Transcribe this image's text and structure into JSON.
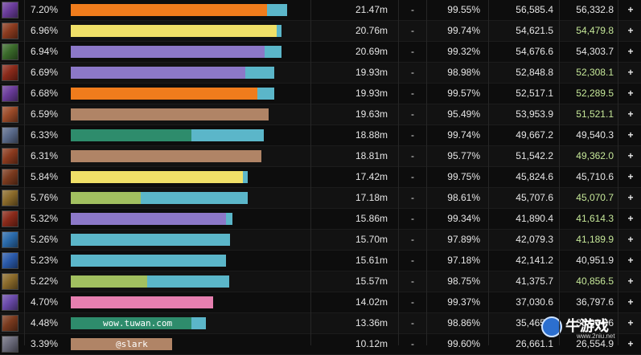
{
  "colors": {
    "accent_green": "#c6e899",
    "bar_ext": "#5bb6c9",
    "text": "#e6e6e6"
  },
  "rows": [
    {
      "icon": "rogue-spec-icon",
      "icon_color": "#6a3c9a",
      "pct": "7.20%",
      "bar_color": "#f07c1c",
      "bar_fraction": 0.872,
      "ext_fraction": 0.088,
      "bar_label": "",
      "damage": "21.47m",
      "dash": "-",
      "accuracy": "99.55%",
      "dps": "56,585.4",
      "dps_effective": "56,332.8",
      "highlight": false
    },
    {
      "icon": "warrior-spec-icon",
      "icon_color": "#8a3a1e",
      "pct": "6.96%",
      "bar_color": "#f0e068",
      "bar_fraction": 0.916,
      "ext_fraction": 0.023,
      "bar_label": "",
      "damage": "20.76m",
      "dash": "-",
      "accuracy": "99.74%",
      "dps": "54,621.5",
      "dps_effective": "54,479.8",
      "highlight": true
    },
    {
      "icon": "shaman-spec-icon",
      "icon_color": "#3a6a2a",
      "pct": "6.94%",
      "bar_color": "#8c78c8",
      "bar_fraction": 0.861,
      "ext_fraction": 0.074,
      "bar_label": "",
      "damage": "20.69m",
      "dash": "-",
      "accuracy": "99.32%",
      "dps": "54,676.6",
      "dps_effective": "54,303.7",
      "highlight": false
    },
    {
      "icon": "warrior-spec-icon",
      "icon_color": "#8a2a1a",
      "pct": "6.69%",
      "bar_color": "#8c78c8",
      "bar_fraction": 0.776,
      "ext_fraction": 0.129,
      "bar_label": "",
      "damage": "19.93m",
      "dash": "-",
      "accuracy": "98.98%",
      "dps": "52,848.8",
      "dps_effective": "52,308.1",
      "highlight": true
    },
    {
      "icon": "rogue-spec-icon",
      "icon_color": "#6a3c9a",
      "pct": "6.68%",
      "bar_color": "#f07c1c",
      "bar_fraction": 0.829,
      "ext_fraction": 0.076,
      "bar_label": "",
      "damage": "19.93m",
      "dash": "-",
      "accuracy": "99.57%",
      "dps": "52,517.1",
      "dps_effective": "52,289.5",
      "highlight": true
    },
    {
      "icon": "warrior-spec-icon",
      "icon_color": "#9a4a28",
      "pct": "6.59%",
      "bar_color": "#b08466",
      "bar_fraction": 0.88,
      "ext_fraction": 0.0,
      "bar_label": "",
      "damage": "19.63m",
      "dash": "-",
      "accuracy": "95.49%",
      "dps": "53,953.9",
      "dps_effective": "51,521.1",
      "highlight": true
    },
    {
      "icon": "druid-spec-icon",
      "icon_color": "#5a6a8a",
      "pct": "6.33%",
      "bar_color": "#2e8c6c",
      "bar_fraction": 0.536,
      "ext_fraction": 0.321,
      "bar_label": "",
      "damage": "18.88m",
      "dash": "-",
      "accuracy": "99.74%",
      "dps": "49,667.2",
      "dps_effective": "49,540.3",
      "highlight": false
    },
    {
      "icon": "warrior-spec-icon",
      "icon_color": "#8a3a1e",
      "pct": "6.31%",
      "bar_color": "#b08466",
      "bar_fraction": 0.846,
      "ext_fraction": 0.0,
      "bar_label": "",
      "damage": "18.81m",
      "dash": "-",
      "accuracy": "95.77%",
      "dps": "51,542.2",
      "dps_effective": "49,362.0",
      "highlight": true
    },
    {
      "icon": "warrior-spec-icon",
      "icon_color": "#7a3a1e",
      "pct": "5.84%",
      "bar_color": "#f0e068",
      "bar_fraction": 0.765,
      "ext_fraction": 0.021,
      "bar_label": "",
      "damage": "17.42m",
      "dash": "-",
      "accuracy": "99.75%",
      "dps": "45,824.6",
      "dps_effective": "45,710.6",
      "highlight": false
    },
    {
      "icon": "hunter-spec-icon",
      "icon_color": "#8a6a2a",
      "pct": "5.76%",
      "bar_color": "#a2c060",
      "bar_fraction": 0.311,
      "ext_fraction": 0.474,
      "bar_label": "",
      "damage": "17.18m",
      "dash": "-",
      "accuracy": "98.61%",
      "dps": "45,707.6",
      "dps_effective": "45,070.7",
      "highlight": true
    },
    {
      "icon": "warrior-spec-icon",
      "icon_color": "#8a2a1a",
      "pct": "5.32%",
      "bar_color": "#8c78c8",
      "bar_fraction": 0.69,
      "ext_fraction": 0.029,
      "bar_label": "",
      "damage": "15.86m",
      "dash": "-",
      "accuracy": "99.34%",
      "dps": "41,890.4",
      "dps_effective": "41,614.3",
      "highlight": true
    },
    {
      "icon": "mage-spec-icon",
      "icon_color": "#2a6aaa",
      "pct": "5.26%",
      "bar_color": "#5bb6c9",
      "bar_fraction": 0.706,
      "ext_fraction": 0.0,
      "bar_label": "",
      "damage": "15.70m",
      "dash": "-",
      "accuracy": "97.89%",
      "dps": "42,079.3",
      "dps_effective": "41,189.9",
      "highlight": true
    },
    {
      "icon": "mage-spec-icon",
      "icon_color": "#2a5aaa",
      "pct": "5.23%",
      "bar_color": "#5bb6c9",
      "bar_fraction": 0.689,
      "ext_fraction": 0.0,
      "bar_label": "",
      "damage": "15.61m",
      "dash": "-",
      "accuracy": "97.18%",
      "dps": "42,141.2",
      "dps_effective": "40,951.9",
      "highlight": false
    },
    {
      "icon": "hunter-spec-icon",
      "icon_color": "#8a6a2a",
      "pct": "5.22%",
      "bar_color": "#a2c060",
      "bar_fraction": 0.34,
      "ext_fraction": 0.366,
      "bar_label": "",
      "damage": "15.57m",
      "dash": "-",
      "accuracy": "98.75%",
      "dps": "41,375.7",
      "dps_effective": "40,856.5",
      "highlight": true
    },
    {
      "icon": "priest-spec-icon",
      "icon_color": "#6a4aaa",
      "pct": "4.70%",
      "bar_color": "#e67fb0",
      "bar_fraction": 0.632,
      "ext_fraction": 0.0,
      "bar_label": "",
      "damage": "14.02m",
      "dash": "-",
      "accuracy": "99.37%",
      "dps": "37,030.6",
      "dps_effective": "36,797.6",
      "highlight": false
    },
    {
      "icon": "warrior-spec-icon",
      "icon_color": "#7a3a1e",
      "pct": "4.48%",
      "bar_color": "#2e8c6c",
      "bar_fraction": 0.536,
      "ext_fraction": 0.064,
      "bar_label": "wow.tuwan.com",
      "damage": "13.36m",
      "dash": "-",
      "accuracy": "98.86%",
      "dps": "35,465.6",
      "dps_effective": "35,064.6",
      "highlight": false
    },
    {
      "icon": "paladin-spec-icon",
      "icon_color": "#6a6a7a",
      "pct": "3.39%",
      "bar_color": "#b08466",
      "bar_fraction": 0.45,
      "ext_fraction": 0.0,
      "bar_label": "@slark",
      "damage": "10.12m",
      "dash": "-",
      "accuracy": "99.60%",
      "dps": "26,661.1",
      "dps_effective": "26,554.9",
      "highlight": false
    }
  ],
  "watermark": {
    "brand_name": "牛游戏",
    "brand_site": "www.2niu.net"
  }
}
